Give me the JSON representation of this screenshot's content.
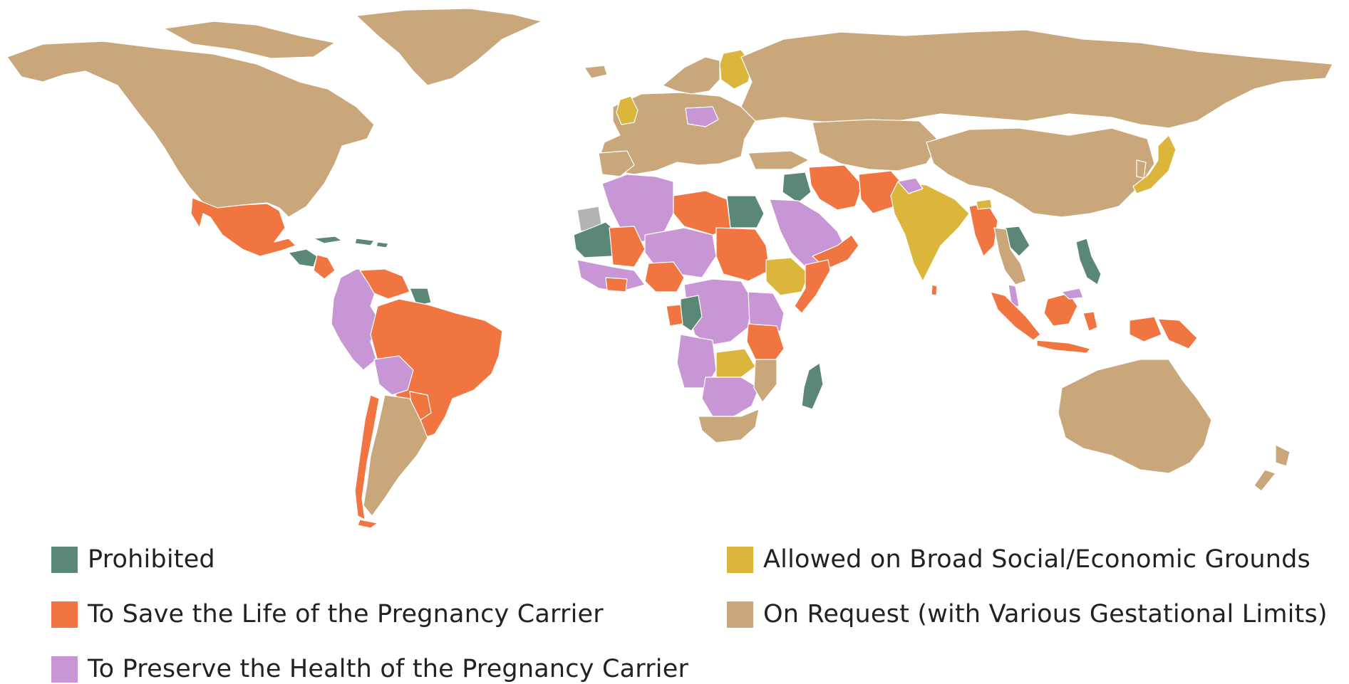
{
  "colors": {
    "prohibited": "#5b8776",
    "save_life": "#f07541",
    "preserve_health": "#c896d4",
    "socioeconomic": "#dcb53c",
    "on_request": "#c9a77b",
    "no_data": "#b3b3b3",
    "border": "#ffffff"
  },
  "legend": {
    "items": [
      {
        "label": "Prohibited",
        "color": "#5b8776"
      },
      {
        "label": "To Save the Life of the Pregnancy Carrier",
        "color": "#f07541"
      },
      {
        "label": "To Preserve the Health of the Pregnancy Carrier",
        "color": "#c896d4"
      },
      {
        "label": "Allowed on Broad Social/Economic Grounds",
        "color": "#dcb53c"
      },
      {
        "label": "On Request (with Various Gestational Limits)",
        "color": "#c9a77b"
      }
    ]
  }
}
